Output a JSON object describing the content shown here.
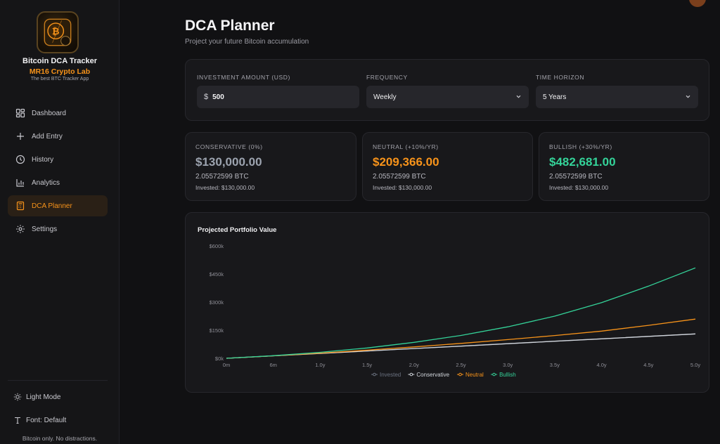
{
  "brand": {
    "title": "Bitcoin DCA Tracker",
    "subtitle": "MR16 Crypto Lab",
    "tagline": "The best BTC Tracker App"
  },
  "nav": {
    "items": [
      {
        "label": "Dashboard",
        "icon": "dashboard-icon"
      },
      {
        "label": "Add Entry",
        "icon": "plus-icon"
      },
      {
        "label": "History",
        "icon": "clock-icon"
      },
      {
        "label": "Analytics",
        "icon": "bar-chart-icon"
      },
      {
        "label": "DCA Planner",
        "icon": "calculator-icon",
        "active": true
      },
      {
        "label": "Settings",
        "icon": "gear-icon"
      }
    ]
  },
  "sidebar_bottom": {
    "theme_label": "Light Mode",
    "font_label": "Font: Default",
    "footer": "Bitcoin only. No distractions."
  },
  "page": {
    "title": "DCA Planner",
    "subtitle": "Project your future Bitcoin accumulation"
  },
  "inputs": {
    "amount_label": "INVESTMENT AMOUNT (USD)",
    "currency_symbol": "$",
    "amount_value": "500",
    "frequency_label": "FREQUENCY",
    "frequency_value": "Weekly",
    "horizon_label": "TIME HORIZON",
    "horizon_value": "5 Years"
  },
  "scenarios": [
    {
      "label": "CONSERVATIVE (0%)",
      "value": "$130,000.00",
      "btc": "2.05572599 BTC",
      "invested": "Invested: $130,000.00",
      "color": "#9ca3af"
    },
    {
      "label": "NEUTRAL (+10%/YR)",
      "value": "$209,366.00",
      "btc": "2.05572599 BTC",
      "invested": "Invested: $130,000.00",
      "color": "#f7931a"
    },
    {
      "label": "BULLISH (+30%/YR)",
      "value": "$482,681.00",
      "btc": "2.05572599 BTC",
      "invested": "Invested: $130,000.00",
      "color": "#34d399"
    }
  ],
  "chart_data": {
    "type": "line",
    "title": "Projected Portfolio Value",
    "x": [
      0,
      0.5,
      1.0,
      1.5,
      2.0,
      2.5,
      3.0,
      3.5,
      4.0,
      4.5,
      5.0
    ],
    "x_tick_labels": [
      "0m",
      "6m",
      "1.0y",
      "1.5y",
      "2.0y",
      "2.5y",
      "3.0y",
      "3.5y",
      "4.0y",
      "4.5y",
      "5.0y"
    ],
    "y_ticks": [
      0,
      150000,
      300000,
      450000,
      600000
    ],
    "y_tick_labels": [
      "$0k",
      "$150k",
      "$300k",
      "$450k",
      "$600k"
    ],
    "ylim": [
      0,
      600000
    ],
    "xlim": [
      0,
      5
    ],
    "grid": false,
    "legend_position": "bottom-center",
    "series": [
      {
        "name": "Invested",
        "color": "#6b7280",
        "values": [
          0,
          13000,
          26000,
          39000,
          52000,
          65000,
          78000,
          91000,
          104000,
          117000,
          130000
        ]
      },
      {
        "name": "Conservative",
        "color": "#d1d5db",
        "values": [
          0,
          13000,
          26000,
          39000,
          52000,
          65000,
          78000,
          91000,
          104000,
          117000,
          130000
        ]
      },
      {
        "name": "Neutral",
        "color": "#f7931a",
        "values": [
          0,
          13300,
          27800,
          43600,
          60800,
          79500,
          99700,
          121500,
          145000,
          176000,
          209366
        ]
      },
      {
        "name": "Bullish",
        "color": "#34d399",
        "values": [
          0,
          14000,
          32000,
          55000,
          85000,
          122000,
          168000,
          225000,
          297000,
          385000,
          482681
        ]
      }
    ]
  }
}
